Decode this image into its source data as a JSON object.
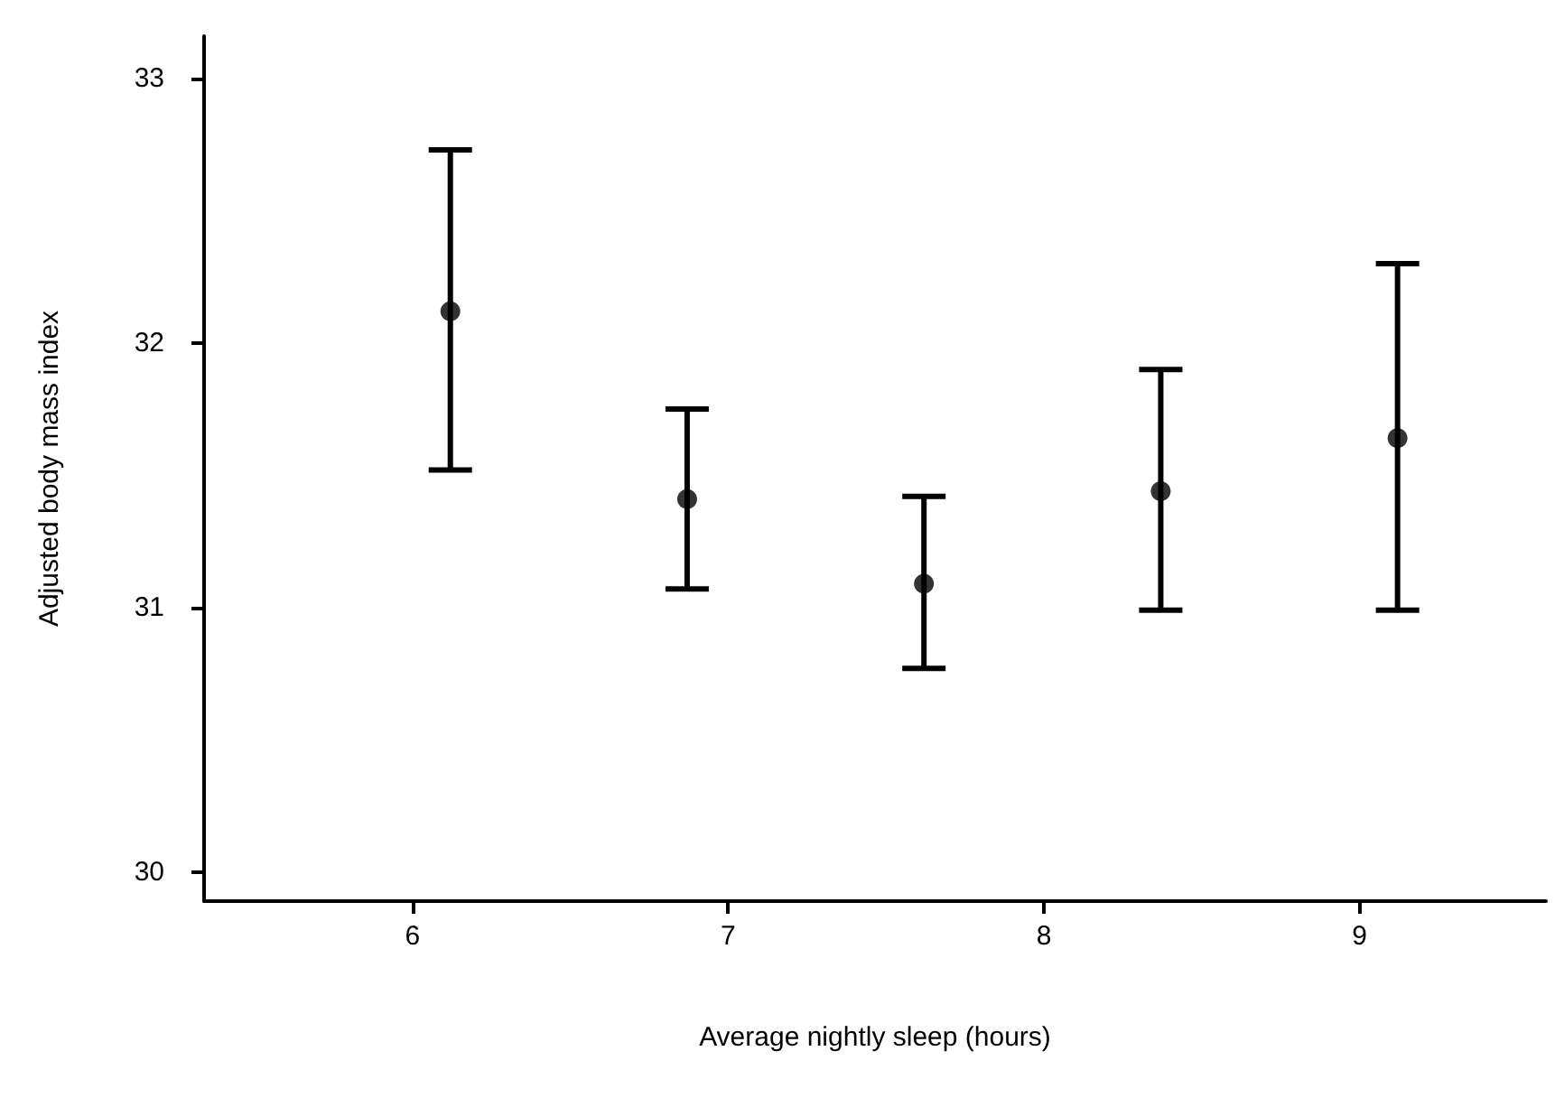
{
  "chart_data": {
    "type": "scatter",
    "xlabel": "Average nightly sleep (hours)",
    "ylabel": "Adjusted body mass index",
    "x": [
      6.12,
      6.87,
      7.62,
      8.37,
      9.12
    ],
    "values": [
      32.12,
      31.41,
      31.09,
      31.44,
      31.64
    ],
    "errors": [
      [
        31.52,
        32.73
      ],
      [
        31.07,
        31.75
      ],
      [
        30.77,
        31.42
      ],
      [
        30.99,
        31.9
      ],
      [
        30.99,
        32.3
      ]
    ],
    "color": "#000000",
    "marker": "circle",
    "xlim": [
      5.34,
      9.59
    ],
    "xticks": [
      6,
      7,
      8,
      9
    ],
    "ylim": [
      29.89,
      33.16
    ],
    "yticks": [
      30,
      31,
      32,
      33
    ],
    "grid": false
  }
}
